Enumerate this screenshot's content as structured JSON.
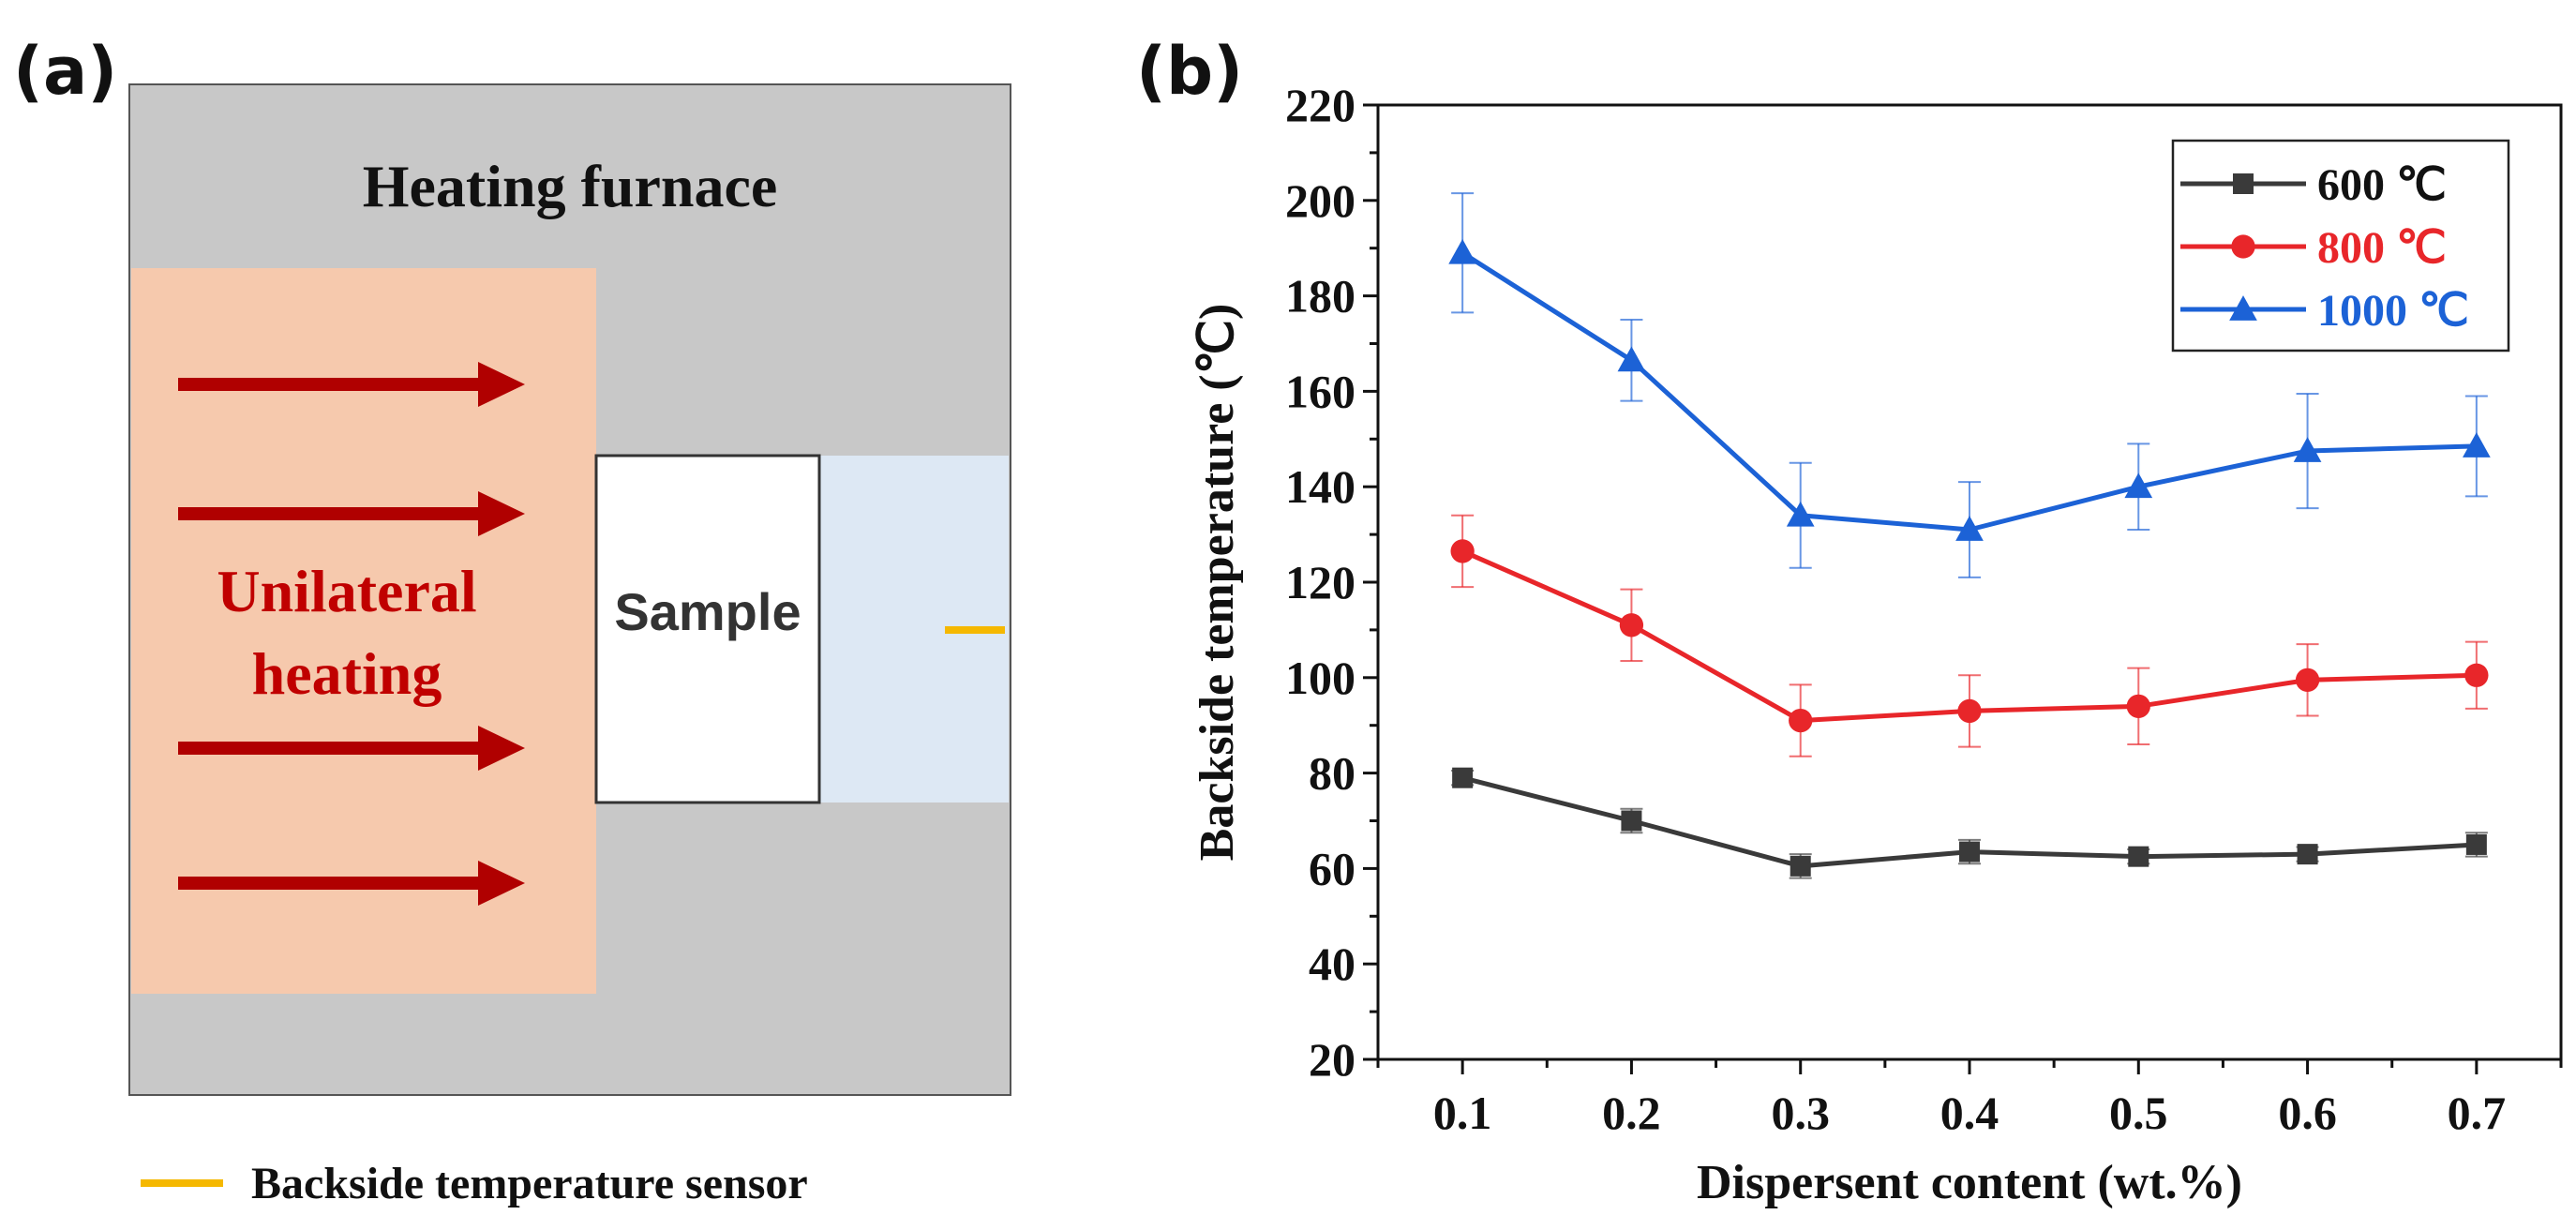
{
  "panel_a": {
    "label": "(a)",
    "furnace_title": "Heating furnace",
    "heating_label_line1": "Unilateral",
    "heating_label_line2": "heating",
    "sample_label": "Sample",
    "sensor_legend": "Backside temperature sensor",
    "colors": {
      "furnace": "#c8c8c8",
      "heating_zone": "#f6c9ad",
      "arrow": "#b00000",
      "backside": "#dde8f4",
      "sensor": "#f5b800"
    }
  },
  "chart_data": {
    "panel_label": "(b)",
    "type": "line",
    "title": "",
    "xlabel": "Dispersent content (wt.%)",
    "ylabel": "Backside temperature (℃)",
    "x": [
      0.1,
      0.2,
      0.3,
      0.4,
      0.5,
      0.6,
      0.7
    ],
    "x_tick_labels": [
      "0.1",
      "0.2",
      "0.3",
      "0.4",
      "0.5",
      "0.6",
      "0.7"
    ],
    "xlim": [
      0.05,
      0.75
    ],
    "ylim": [
      20,
      220
    ],
    "y_ticks": [
      20,
      40,
      60,
      80,
      100,
      120,
      140,
      160,
      180,
      200,
      220
    ],
    "legend_position": "top-right",
    "series": [
      {
        "name": "600 ℃",
        "color": "#3a3a3a",
        "marker": "square",
        "values": [
          79,
          70,
          60.5,
          63.5,
          62.5,
          63,
          65
        ],
        "errors": [
          1.5,
          2.5,
          2.5,
          2.5,
          1.5,
          1.5,
          2.5
        ]
      },
      {
        "name": "800 ℃",
        "color": "#e8262a",
        "marker": "circle",
        "values": [
          126.5,
          111,
          91,
          93,
          94,
          99.5,
          100.5
        ],
        "errors": [
          7.5,
          7.5,
          7.5,
          7.5,
          8,
          7.5,
          7
        ]
      },
      {
        "name": "1000 ℃",
        "color": "#1c62d6",
        "marker": "triangle",
        "values": [
          189,
          166.5,
          134,
          131,
          140,
          147.5,
          148.5
        ],
        "errors": [
          12.5,
          8.5,
          11,
          10,
          9,
          12,
          10.5
        ]
      }
    ]
  }
}
